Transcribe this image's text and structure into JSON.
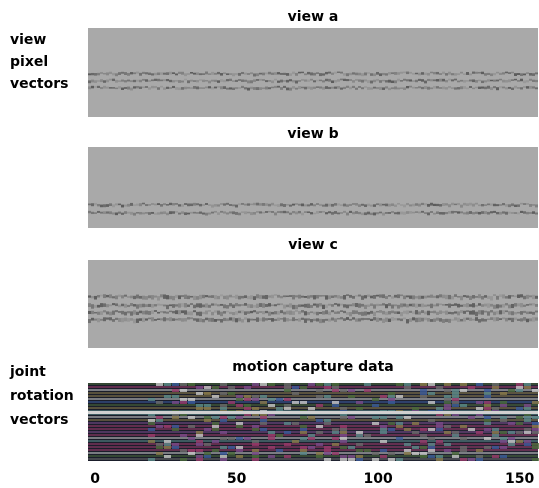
{
  "figure": {
    "panels": [
      {
        "title": "view a"
      },
      {
        "title": "view b"
      },
      {
        "title": "view c"
      },
      {
        "title": "motion capture data"
      }
    ],
    "row_labels": [
      [
        "view",
        "pixel",
        "vectors"
      ],
      [
        "joint",
        "rotation",
        "vectors"
      ]
    ],
    "x_axis": {
      "xlim": [
        -2.5,
        156.5
      ],
      "xticks": [
        0,
        50,
        100,
        150
      ]
    }
  }
}
